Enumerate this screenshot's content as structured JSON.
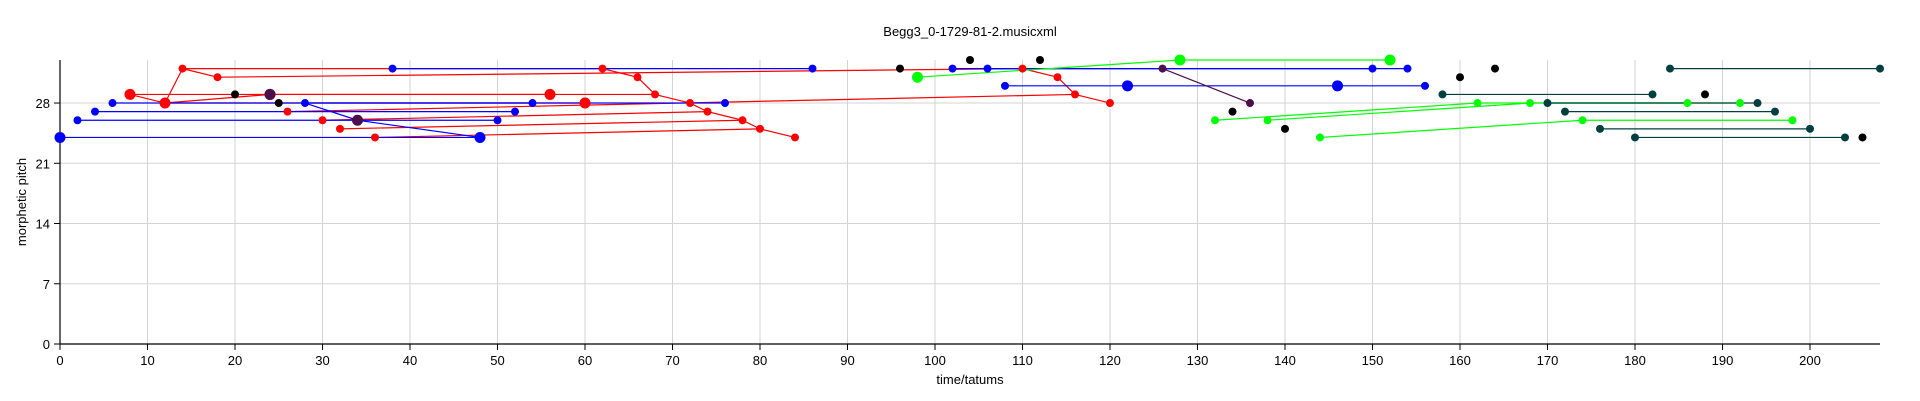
{
  "chart_data": {
    "type": "scatter",
    "title": "Begg3_0-1729-81-2.musicxml",
    "xlabel": "time/tatums",
    "ylabel": "morphetic pitch",
    "xlim": [
      0,
      208
    ],
    "ylim": [
      0,
      33
    ],
    "xticks": [
      0,
      10,
      20,
      30,
      40,
      50,
      60,
      70,
      80,
      90,
      100,
      110,
      120,
      130,
      140,
      150,
      160,
      170,
      180,
      190,
      200
    ],
    "yticks": [
      0,
      7,
      14,
      21,
      28
    ],
    "grid": true,
    "series": [
      {
        "color": "#ff0000",
        "points": [
          [
            8,
            29
          ],
          [
            12,
            28
          ],
          [
            14,
            32
          ],
          [
            18,
            31
          ],
          [
            24,
            29
          ],
          [
            26,
            27
          ],
          [
            30,
            26
          ],
          [
            32,
            25
          ],
          [
            36,
            24
          ],
          [
            56,
            29
          ],
          [
            60,
            28
          ],
          [
            62,
            32
          ],
          [
            66,
            31
          ],
          [
            68,
            29
          ],
          [
            72,
            28
          ],
          [
            74,
            27
          ],
          [
            78,
            26
          ],
          [
            80,
            25
          ],
          [
            84,
            24
          ],
          [
            110,
            32
          ],
          [
            114,
            31
          ],
          [
            116,
            29
          ],
          [
            120,
            28
          ]
        ],
        "sizes": [
          2,
          2,
          1,
          1,
          2,
          1,
          1,
          1,
          1,
          2,
          2,
          1,
          1,
          1,
          1,
          1,
          1,
          1,
          1,
          1,
          1,
          1,
          1
        ],
        "links": [
          [
            14,
            62
          ],
          [
            18,
            110
          ],
          [
            8,
            56
          ],
          [
            12,
            60
          ],
          [
            26,
            116
          ],
          [
            36,
            80
          ],
          [
            30,
            74
          ],
          [
            24,
            68
          ],
          [
            32,
            78
          ],
          [
            12,
            24
          ],
          [
            62,
            66
          ],
          [
            66,
            68
          ],
          [
            68,
            72
          ],
          [
            72,
            74
          ],
          [
            74,
            78
          ],
          [
            78,
            80
          ],
          [
            80,
            84
          ],
          [
            110,
            114
          ],
          [
            114,
            116
          ],
          [
            116,
            120
          ],
          [
            8,
            12
          ],
          [
            12,
            14
          ],
          [
            14,
            18
          ]
        ]
      },
      {
        "color": "#0000ff",
        "points": [
          [
            0,
            24
          ],
          [
            2,
            26
          ],
          [
            4,
            27
          ],
          [
            6,
            28
          ],
          [
            28,
            28
          ],
          [
            34,
            26
          ],
          [
            38,
            32
          ],
          [
            48,
            24
          ],
          [
            50,
            26
          ],
          [
            52,
            27
          ],
          [
            54,
            28
          ],
          [
            76,
            28
          ],
          [
            86,
            32
          ],
          [
            102,
            32
          ],
          [
            106,
            32
          ],
          [
            108,
            30
          ],
          [
            122,
            30
          ],
          [
            146,
            30
          ],
          [
            150,
            32
          ],
          [
            154,
            32
          ],
          [
            156,
            30
          ]
        ],
        "sizes": [
          2,
          1,
          1,
          1,
          1,
          1,
          1,
          2,
          1,
          1,
          1,
          1,
          1,
          1,
          1,
          1,
          2,
          2,
          1,
          1,
          1
        ],
        "links": [
          [
            0,
            48
          ],
          [
            2,
            50
          ],
          [
            4,
            52
          ],
          [
            6,
            54
          ],
          [
            28,
            76
          ],
          [
            38,
            86
          ],
          [
            102,
            150
          ],
          [
            106,
            154
          ],
          [
            108,
            156
          ],
          [
            34,
            48
          ],
          [
            28,
            34
          ]
        ]
      },
      {
        "color": "#000000",
        "points": [
          [
            20,
            29
          ],
          [
            25,
            28
          ],
          [
            96,
            32
          ],
          [
            104,
            33
          ],
          [
            112,
            33
          ],
          [
            134,
            27
          ],
          [
            140,
            25
          ],
          [
            160,
            31
          ],
          [
            164,
            32
          ],
          [
            188,
            29
          ],
          [
            206,
            24
          ]
        ],
        "sizes": [
          1,
          1,
          1,
          1,
          1,
          1,
          1,
          1,
          1,
          1,
          1
        ],
        "links": []
      },
      {
        "color": "#00ff00",
        "points": [
          [
            98,
            31
          ],
          [
            128,
            33
          ],
          [
            132,
            26
          ],
          [
            138,
            26
          ],
          [
            144,
            24
          ],
          [
            152,
            33
          ],
          [
            162,
            28
          ],
          [
            168,
            28
          ],
          [
            174,
            26
          ],
          [
            186,
            28
          ],
          [
            192,
            28
          ],
          [
            198,
            26
          ]
        ],
        "sizes": [
          2,
          2,
          1,
          1,
          1,
          2,
          1,
          1,
          1,
          1,
          1,
          1
        ],
        "links": [
          [
            98,
            128
          ],
          [
            128,
            152
          ],
          [
            98,
            110
          ],
          [
            132,
            162
          ],
          [
            138,
            168
          ],
          [
            144,
            174
          ],
          [
            162,
            186
          ],
          [
            168,
            192
          ],
          [
            174,
            198
          ]
        ]
      },
      {
        "color": "#003f3f",
        "points": [
          [
            158,
            29
          ],
          [
            170,
            28
          ],
          [
            172,
            27
          ],
          [
            176,
            25
          ],
          [
            180,
            24
          ],
          [
            182,
            29
          ],
          [
            184,
            32
          ],
          [
            194,
            28
          ],
          [
            196,
            27
          ],
          [
            200,
            25
          ],
          [
            204,
            24
          ],
          [
            208,
            32
          ]
        ],
        "sizes": [
          1,
          1,
          1,
          1,
          1,
          1,
          1,
          1,
          1,
          1,
          1,
          1
        ],
        "links": [
          [
            158,
            182
          ],
          [
            170,
            194
          ],
          [
            172,
            196
          ],
          [
            176,
            200
          ],
          [
            180,
            204
          ],
          [
            184,
            208
          ]
        ]
      },
      {
        "color": "#4b0f4b",
        "points": [
          [
            24,
            29
          ],
          [
            34,
            26
          ],
          [
            126,
            32
          ],
          [
            136,
            28
          ]
        ],
        "sizes": [
          2,
          2,
          1,
          1
        ],
        "links": [
          [
            126,
            136
          ]
        ]
      }
    ]
  }
}
